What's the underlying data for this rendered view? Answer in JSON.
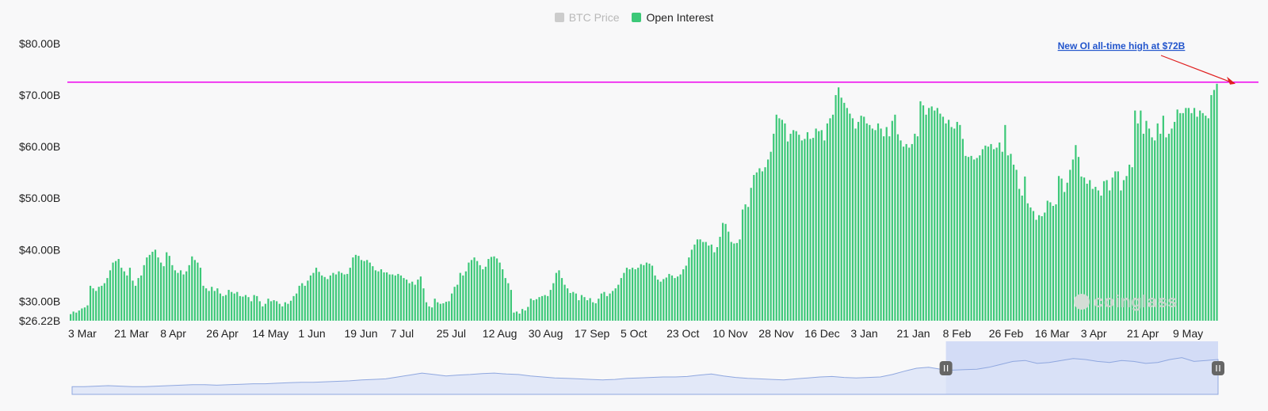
{
  "legend": {
    "items": [
      {
        "label": "BTC Price",
        "color": "#cccccc",
        "active": false
      },
      {
        "label": "Open Interest",
        "color": "#3cc878",
        "active": true
      }
    ]
  },
  "annotation": {
    "text": "New OI all-time high at $72B",
    "line_value": 72.5,
    "line_color": "#ee00ee",
    "arrow_color": "#e02020"
  },
  "watermark": "coinglass",
  "colors": {
    "bar": "#3cc878",
    "navigator_fill": "#dbe3f7",
    "navigator_line": "#8fa7df",
    "navigator_selection": "#c9d4f5"
  },
  "chart_data": {
    "type": "bar",
    "series_name": "Open Interest",
    "y_ticks": [
      "$80.00B",
      "$70.00B",
      "$60.00B",
      "$50.00B",
      "$40.00B",
      "$30.00B",
      "$26.22B"
    ],
    "y_tick_values": [
      80,
      70,
      60,
      50,
      40,
      30,
      26.22
    ],
    "ylim": [
      26.22,
      80
    ],
    "x_ticks": [
      "3 Mar",
      "21 Mar",
      "8 Apr",
      "26 Apr",
      "14 May",
      "1 Jun",
      "19 Jun",
      "7 Jul",
      "25 Jul",
      "12 Aug",
      "30 Aug",
      "17 Sep",
      "5 Oct",
      "23 Oct",
      "10 Nov",
      "28 Nov",
      "16 Dec",
      "3 Jan",
      "21 Jan",
      "8 Feb",
      "26 Feb",
      "16 Mar",
      "3 Apr",
      "21 Apr",
      "9 May"
    ],
    "grid": false,
    "legend_position": "top-center",
    "values": [
      27.5,
      28,
      27.8,
      28.2,
      28.6,
      28.8,
      29.2,
      33,
      32.5,
      32,
      32.8,
      33,
      33.5,
      34.5,
      36,
      37.5,
      37.8,
      38.2,
      36.5,
      35.8,
      35,
      36.5,
      34,
      33,
      34.5,
      35,
      37,
      38.5,
      39,
      39.6,
      40,
      38.5,
      37.5,
      36.8,
      39.5,
      38.8,
      37,
      36,
      35.5,
      36,
      35.2,
      35.8,
      37,
      38.7,
      38,
      37.5,
      36.5,
      33,
      32.5,
      32,
      32.8,
      32,
      32.5,
      31.5,
      31,
      31.2,
      32.2,
      31.8,
      31.5,
      31.8,
      31,
      30.9,
      31.2,
      30.8,
      30,
      31.2,
      31,
      30,
      29,
      29.5,
      30.5,
      30,
      30.2,
      30,
      29.5,
      29,
      29.8,
      29.5,
      30.1,
      31,
      31.5,
      33,
      33.5,
      33,
      34,
      35,
      35.5,
      36.5,
      35.7,
      35,
      34.7,
      34.3,
      35,
      35.5,
      35.2,
      35.8,
      35.5,
      35.2,
      35.3,
      36.5,
      38.5,
      39,
      38.8,
      38,
      37.8,
      38,
      37.5,
      36.8,
      36,
      35.8,
      36.2,
      35.6,
      35.6,
      35.2,
      35.2,
      35,
      35.3,
      35,
      34.5,
      34.2,
      33.5,
      33.8,
      33.2,
      34.2,
      34.8,
      32.5,
      29.8,
      29,
      28.8,
      30.5,
      29.8,
      29.5,
      29.6,
      29.9,
      30,
      31.5,
      32.8,
      33.2,
      35.5,
      35,
      35.8,
      37.5,
      38,
      38.5,
      37.8,
      37,
      36.2,
      36.7,
      38.2,
      38.6,
      38.7,
      38.3,
      37.5,
      36.2,
      34.5,
      33.5,
      32.2,
      27.8,
      28,
      27.6,
      28.5,
      28.2,
      28.9,
      30.5,
      30.2,
      30.4,
      30.8,
      31,
      31.2,
      31,
      32.2,
      33.5,
      35.5,
      36,
      34.5,
      33.2,
      32.5,
      31.6,
      31.8,
      31.5,
      30.2,
      31.2,
      30.8,
      30.2,
      30.6,
      29.8,
      29.6,
      30.5,
      31.5,
      31.8,
      31,
      31.5,
      32,
      32.5,
      33.2,
      34.5,
      35.5,
      36.5,
      36.2,
      36.5,
      36.2,
      36.5,
      37.2,
      37,
      37.5,
      37.3,
      36.9,
      35,
      34.2,
      33.8,
      34.3,
      34.6,
      35.3,
      35,
      34.5,
      34.8,
      35.2,
      36.2,
      36.9,
      38.5,
      40,
      41,
      42,
      42,
      41.5,
      41.5,
      40.8,
      41,
      39.5,
      40.5,
      42.5,
      45.2,
      45,
      43.5,
      41.5,
      41.2,
      41.3,
      42,
      47.8,
      48.8,
      48.3,
      52,
      54.5,
      55,
      55.8,
      55.2,
      56,
      57.5,
      59,
      62.5,
      66.2,
      65.5,
      65.2,
      64.5,
      61,
      62.5,
      63.2,
      63,
      62.3,
      61.2,
      61.5,
      62.8,
      61.5,
      61.7,
      63.5,
      63,
      63.2,
      61.2,
      64.5,
      65.5,
      66.2,
      70,
      71.5,
      69.5,
      68.5,
      67.5,
      66.4,
      65.5,
      63.5,
      64.8,
      66,
      65.8,
      64.5,
      64.2,
      63.5,
      63.2,
      64.5,
      63.5,
      62,
      63.8,
      62,
      65,
      66.2,
      62.4,
      61.2,
      60,
      60.5,
      59.8,
      60.5,
      62.5,
      62,
      68.8,
      68,
      66.2,
      67.5,
      67.8,
      67,
      67.5,
      66.4,
      65.8,
      64.5,
      65.2,
      63.8,
      63.5,
      64.8,
      64.2,
      61.5,
      58.2,
      58,
      58.2,
      57.5,
      57.8,
      58.3,
      59.5,
      60.2,
      60,
      60.5,
      59.5,
      59.8,
      60.8,
      59,
      64.2,
      58.3,
      58.6,
      56.5,
      55.5,
      51.8,
      50.5,
      54.2,
      49,
      48.2,
      47.5,
      45.8,
      46.7,
      46.5,
      47.2,
      49.5,
      49.2,
      48.5,
      48.8,
      54.3,
      53.8,
      51.2,
      53,
      55.5,
      57.5,
      60.3,
      58,
      54.2,
      54,
      52.8,
      53.5,
      51.8,
      52.2,
      51.5,
      50.5,
      53.3,
      53.5,
      51.5,
      54,
      55.2,
      55.2,
      51.5,
      53.5,
      54.3,
      56.5,
      56,
      67,
      64.5,
      67,
      62.5,
      65,
      63.5,
      61.8,
      61.2,
      64.5,
      62.5,
      66,
      61.8,
      62.5,
      63.5,
      64.8,
      67.2,
      66.5,
      66.5,
      67.5,
      67.5,
      66.5,
      67.5,
      65.8,
      67,
      66.5,
      66,
      65.5,
      70,
      71,
      72.2
    ]
  },
  "navigator": {
    "selection_start_fraction": 0.7625,
    "selection_end_fraction": 1.0,
    "values": [
      38,
      38,
      38.5,
      39,
      38.5,
      38,
      38,
      38.5,
      39,
      39.5,
      40,
      40,
      39.5,
      40,
      40.5,
      41,
      41,
      41.5,
      42,
      42.5,
      42.5,
      43,
      43.5,
      44,
      45,
      45.5,
      46,
      48,
      50,
      52,
      50.5,
      49,
      50,
      50.5,
      51.5,
      52,
      51,
      50.5,
      49,
      48,
      47,
      46.5,
      46,
      45.5,
      45,
      45.5,
      46.5,
      47,
      47.5,
      48,
      48,
      48.5,
      50,
      51,
      49,
      47.5,
      46.5,
      46,
      45.5,
      45,
      46,
      47,
      48,
      48.5,
      47.5,
      47,
      47.5,
      48,
      50.5,
      54,
      57,
      58,
      56,
      55,
      55.5,
      56,
      58,
      61,
      64,
      65,
      62,
      63,
      65,
      67,
      66,
      64,
      63,
      65,
      64,
      62,
      63,
      66,
      68,
      64,
      65,
      66
    ]
  }
}
